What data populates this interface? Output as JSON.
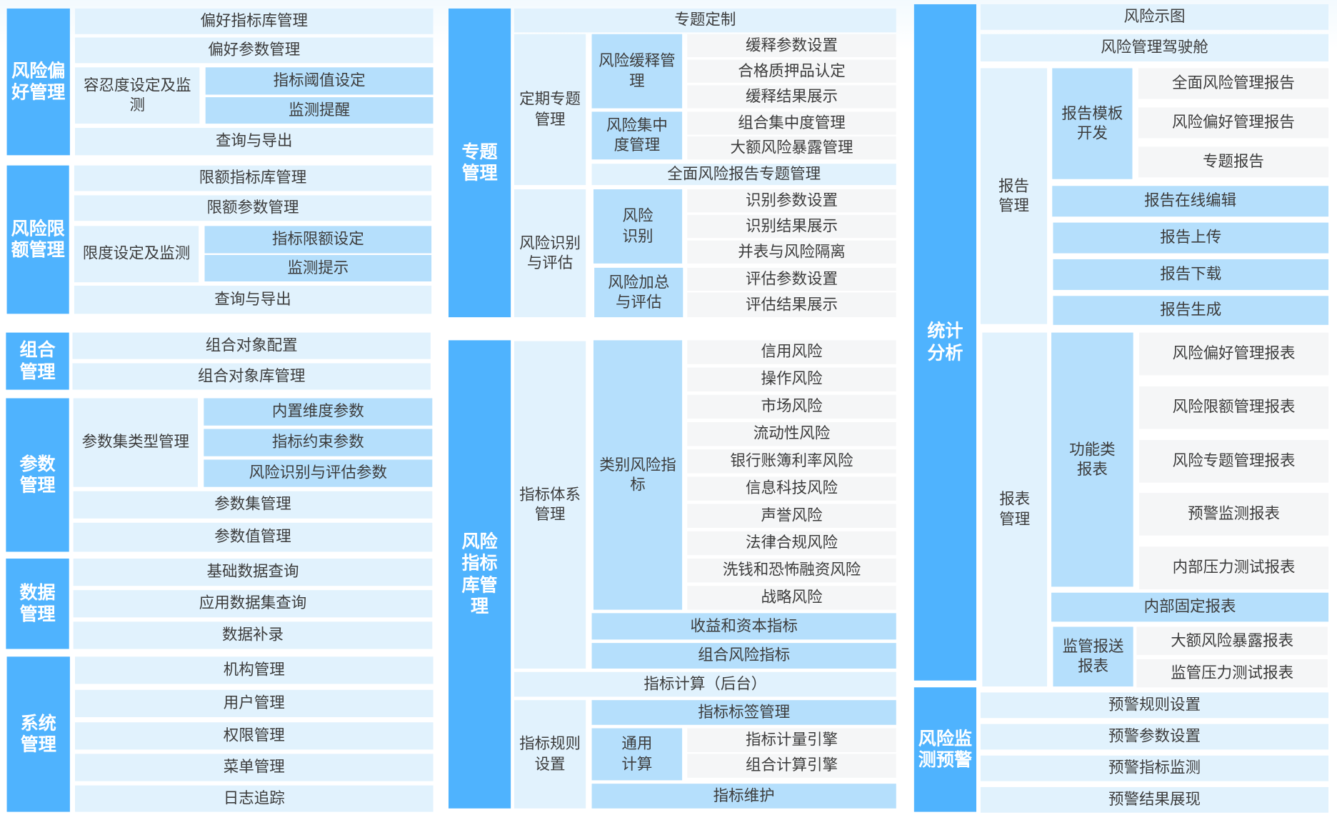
{
  "colors": {
    "primary": "#4fb3fe",
    "secondary": "#e1f2fd",
    "tertiary": "#b5dffc",
    "leaf": "#f5f6f7"
  },
  "blocks": [
    {
      "label": "风险偏\n好管理",
      "level": "primary"
    },
    {
      "label": "偏好指标库管理",
      "level": "secondary"
    },
    {
      "label": "偏好参数管理",
      "level": "secondary"
    },
    {
      "label": "容忍度设定及监\n测",
      "level": "secondary"
    },
    {
      "label": "指标阈值设定",
      "level": "tertiary"
    },
    {
      "label": "监测提醒",
      "level": "tertiary"
    },
    {
      "label": "查询与导出",
      "level": "secondary"
    },
    {
      "label": "风险限\n额管理",
      "level": "primary"
    },
    {
      "label": "限额指标库管理",
      "level": "secondary"
    },
    {
      "label": "限额参数管理",
      "level": "secondary"
    },
    {
      "label": "限度设定及监测",
      "level": "secondary"
    },
    {
      "label": "指标限额设定",
      "level": "tertiary"
    },
    {
      "label": "监测提示",
      "level": "tertiary"
    },
    {
      "label": "查询与导出",
      "level": "secondary"
    },
    {
      "label": "组合\n管理",
      "level": "primary"
    },
    {
      "label": "组合对象配置",
      "level": "secondary"
    },
    {
      "label": "组合对象库管理",
      "level": "secondary"
    },
    {
      "label": "参数\n管理",
      "level": "primary"
    },
    {
      "label": "参数集类型管理",
      "level": "secondary"
    },
    {
      "label": "内置维度参数",
      "level": "tertiary"
    },
    {
      "label": "指标约束参数",
      "level": "tertiary"
    },
    {
      "label": "风险识别与评估参数",
      "level": "tertiary"
    },
    {
      "label": "参数集管理",
      "level": "secondary"
    },
    {
      "label": "参数值管理",
      "level": "secondary"
    },
    {
      "label": "数据\n管理",
      "level": "primary"
    },
    {
      "label": "基础数据查询",
      "level": "secondary"
    },
    {
      "label": "应用数据集查询",
      "level": "secondary"
    },
    {
      "label": "数据补录",
      "level": "secondary"
    },
    {
      "label": "系统\n管理",
      "level": "primary"
    },
    {
      "label": "机构管理",
      "level": "secondary"
    },
    {
      "label": "用户管理",
      "level": "secondary"
    },
    {
      "label": "权限管理",
      "level": "secondary"
    },
    {
      "label": "菜单管理",
      "level": "secondary"
    },
    {
      "label": "日志追踪",
      "level": "secondary"
    },
    {
      "label": "专题\n管理",
      "level": "primary"
    },
    {
      "label": "专题定制",
      "level": "secondary"
    },
    {
      "label": "定期专题\n管理",
      "level": "secondary"
    },
    {
      "label": "风险缓释管\n理",
      "level": "tertiary"
    },
    {
      "label": "缓释参数设置",
      "level": "leaf"
    },
    {
      "label": "合格质押品认定",
      "level": "leaf"
    },
    {
      "label": "缓释结果展示",
      "level": "leaf"
    },
    {
      "label": "风险集中\n度管理",
      "level": "tertiary"
    },
    {
      "label": "组合集中度管理",
      "level": "leaf"
    },
    {
      "label": "大额风险暴露管理",
      "level": "leaf"
    },
    {
      "label": "全面风险报告专题管理",
      "level": "secondary"
    },
    {
      "label": "风险识别\n与评估",
      "level": "secondary"
    },
    {
      "label": "风险\n识别",
      "level": "tertiary"
    },
    {
      "label": "识别参数设置",
      "level": "leaf"
    },
    {
      "label": "识别结果展示",
      "level": "leaf"
    },
    {
      "label": "并表与风险隔离",
      "level": "leaf"
    },
    {
      "label": "风险加总\n与评估",
      "level": "tertiary"
    },
    {
      "label": "评估参数设置",
      "level": "leaf"
    },
    {
      "label": "评估结果展示",
      "level": "leaf"
    },
    {
      "label": "风险\n指标\n库管\n理",
      "level": "primary"
    },
    {
      "label": "指标体系\n管理",
      "level": "secondary"
    },
    {
      "label": "类别风险指\n标",
      "level": "tertiary"
    },
    {
      "label": "信用风险",
      "level": "leaf"
    },
    {
      "label": "操作风险",
      "level": "leaf"
    },
    {
      "label": "市场风险",
      "level": "leaf"
    },
    {
      "label": "流动性风险",
      "level": "leaf"
    },
    {
      "label": "银行账簿利率风险",
      "level": "leaf"
    },
    {
      "label": "信息科技风险",
      "level": "leaf"
    },
    {
      "label": "声誉风险",
      "level": "leaf"
    },
    {
      "label": "法律合规风险",
      "level": "leaf"
    },
    {
      "label": "洗钱和恐怖融资风险",
      "level": "leaf"
    },
    {
      "label": "战略风险",
      "level": "leaf"
    },
    {
      "label": "收益和资本指标",
      "level": "tertiary"
    },
    {
      "label": "组合风险指标",
      "level": "tertiary"
    },
    {
      "label": "指标计算（后台）",
      "level": "secondary"
    },
    {
      "label": "指标规则\n设置",
      "level": "secondary"
    },
    {
      "label": "指标标签管理",
      "level": "tertiary"
    },
    {
      "label": "通用\n计算",
      "level": "tertiary"
    },
    {
      "label": "指标计量引擎",
      "level": "leaf"
    },
    {
      "label": "组合计算引擎",
      "level": "leaf"
    },
    {
      "label": "指标维护",
      "level": "tertiary"
    },
    {
      "label": "统计\n分析",
      "level": "primary"
    },
    {
      "label": "风险示图",
      "level": "secondary"
    },
    {
      "label": "风险管理驾驶舱",
      "level": "secondary"
    },
    {
      "label": "报告\n管理",
      "level": "secondary"
    },
    {
      "label": "报告模板\n开发",
      "level": "tertiary"
    },
    {
      "label": "全面风险管理报告",
      "level": "leaf"
    },
    {
      "label": "风险偏好管理报告",
      "level": "leaf"
    },
    {
      "label": "专题报告",
      "level": "leaf"
    },
    {
      "label": "报告在线编辑",
      "level": "tertiary"
    },
    {
      "label": "报告上传",
      "level": "tertiary"
    },
    {
      "label": "报告下载",
      "level": "tertiary"
    },
    {
      "label": "报告生成",
      "level": "tertiary"
    },
    {
      "label": "报表\n管理",
      "level": "secondary"
    },
    {
      "label": "功能类\n报表",
      "level": "tertiary"
    },
    {
      "label": "风险偏好管理报表",
      "level": "leaf"
    },
    {
      "label": "风险限额管理报表",
      "level": "leaf"
    },
    {
      "label": "风险专题管理报表",
      "level": "leaf"
    },
    {
      "label": "预警监测报表",
      "level": "leaf"
    },
    {
      "label": "内部压力测试报表",
      "level": "leaf"
    },
    {
      "label": "内部固定报表",
      "level": "tertiary"
    },
    {
      "label": "监管报送\n报表",
      "level": "tertiary"
    },
    {
      "label": "大额风险暴露报表",
      "level": "leaf"
    },
    {
      "label": "监管压力测试报表",
      "level": "leaf"
    },
    {
      "label": "风险监\n测预警",
      "level": "primary"
    },
    {
      "label": "预警规则设置",
      "level": "secondary"
    },
    {
      "label": "预警参数设置",
      "level": "secondary"
    },
    {
      "label": "预警指标监测",
      "level": "secondary"
    },
    {
      "label": "预警结果展现",
      "level": "secondary"
    }
  ]
}
